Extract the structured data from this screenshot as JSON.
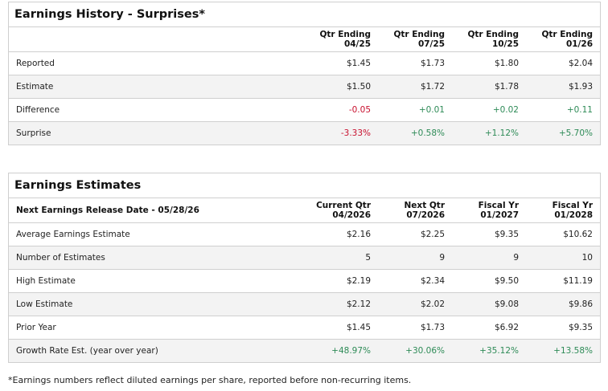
{
  "history": {
    "title": "Earnings History - Surprises*",
    "header_label": "",
    "columns": [
      {
        "line1": "Qtr Ending",
        "line2": "04/25"
      },
      {
        "line1": "Qtr Ending",
        "line2": "07/25"
      },
      {
        "line1": "Qtr Ending",
        "line2": "10/25"
      },
      {
        "line1": "Qtr Ending",
        "line2": "01/26"
      }
    ],
    "rows": [
      {
        "label": "Reported",
        "values": [
          "$1.45",
          "$1.73",
          "$1.80",
          "$2.04"
        ]
      },
      {
        "label": "Estimate",
        "values": [
          "$1.50",
          "$1.72",
          "$1.78",
          "$1.93"
        ]
      },
      {
        "label": "Difference",
        "values": [
          "-0.05",
          "+0.01",
          "+0.02",
          "+0.11"
        ]
      },
      {
        "label": "Surprise",
        "values": [
          "-3.33%",
          "+0.58%",
          "+1.12%",
          "+5.70%"
        ]
      }
    ]
  },
  "estimates": {
    "title": "Earnings Estimates",
    "header_label": "Next Earnings Release Date - 05/28/26",
    "columns": [
      {
        "line1": "Current Qtr",
        "line2": "04/2026"
      },
      {
        "line1": "Next Qtr",
        "line2": "07/2026"
      },
      {
        "line1": "Fiscal Yr",
        "line2": "01/2027"
      },
      {
        "line1": "Fiscal Yr",
        "line2": "01/2028"
      }
    ],
    "rows": [
      {
        "label": "Average Earnings Estimate",
        "values": [
          "$2.16",
          "$2.25",
          "$9.35",
          "$10.62"
        ]
      },
      {
        "label": "Number of Estimates",
        "values": [
          "5",
          "9",
          "9",
          "10"
        ]
      },
      {
        "label": "High Estimate",
        "values": [
          "$2.19",
          "$2.34",
          "$9.50",
          "$11.19"
        ]
      },
      {
        "label": "Low Estimate",
        "values": [
          "$2.12",
          "$2.02",
          "$9.08",
          "$9.86"
        ]
      },
      {
        "label": "Prior Year",
        "values": [
          "$1.45",
          "$1.73",
          "$6.92",
          "$9.35"
        ]
      },
      {
        "label": "Growth Rate Est. (year over year)",
        "values": [
          "+48.97%",
          "+30.06%",
          "+35.12%",
          "+13.58%"
        ]
      }
    ]
  },
  "footnote": "*Earnings numbers reflect diluted earnings per share, reported before non-recurring items.",
  "colors": {
    "negative": "#c8102e",
    "positive": "#2e8b57"
  }
}
